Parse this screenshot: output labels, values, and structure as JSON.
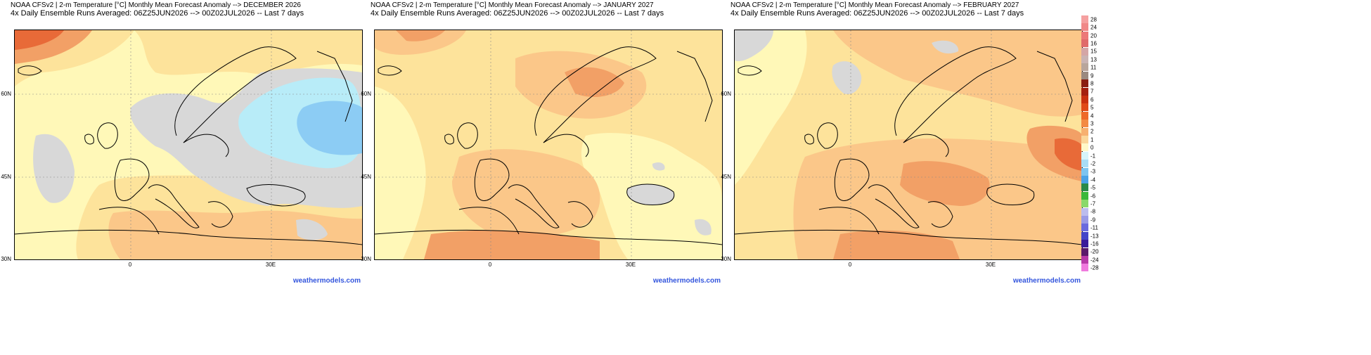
{
  "panels": [
    {
      "title_line1": "NOAA CFSv2 | 2-m Temperature [°C] Monthly Mean Forecast Anomaly --> DECEMBER 2026",
      "title_line2": "4x Daily Ensemble Runs Averaged: 06Z25JUN2026 --> 00Z02JUL2026 -- Last 7 days",
      "credit": "weathermodels.com"
    },
    {
      "title_line1": "NOAA CFSv2 | 2-m Temperature [°C] Monthly Mean Forecast Anomaly --> JANUARY 2027",
      "title_line2": "4x Daily Ensemble Runs Averaged: 06Z25JUN2026 --> 00Z02JUL2026 -- Last 7 days",
      "credit": "weathermodels.com"
    },
    {
      "title_line1": "NOAA CFSv2 | 2-m Temperature [°C] Monthly Mean Forecast Anomaly --> FEBRUARY 2027",
      "title_line2": "4x Daily Ensemble Runs Averaged: 06Z25JUN2026 --> 00Z02JUL2026 -- Last 7 days",
      "credit": "weathermodels.com"
    }
  ],
  "axes": {
    "lat_labels": [
      "60N",
      "45N",
      "30N"
    ],
    "lon_labels": [
      "0",
      "30E"
    ]
  },
  "legend": {
    "levels": [
      "28",
      "24",
      "20",
      "16",
      "15",
      "13",
      "11",
      "9",
      "8",
      "7",
      "6",
      "5",
      "4",
      "3",
      "2",
      "1",
      "0",
      "-1",
      "-2",
      "-3",
      "-4",
      "-5",
      "-6",
      "-7",
      "-8",
      "-9",
      "-11",
      "-13",
      "-16",
      "-20",
      "-24",
      "-28"
    ],
    "colors": [
      "#f5a0a0",
      "#f08888",
      "#ec7878",
      "#e06a6a",
      "#d4a6a6",
      "#c9b3b3",
      "#b8a59c",
      "#9a8a80",
      "#8a1f12",
      "#a4200f",
      "#c8300f",
      "#e04a18",
      "#ee6a2a",
      "#f38a44",
      "#f7b070",
      "#fbd69a",
      "#fff8c8",
      "#d6f4fa",
      "#a8dcf6",
      "#7cc4f0",
      "#4aa2e6",
      "#2a8a4a",
      "#3ab83a",
      "#8ad86a",
      "#bcbcee",
      "#9a9ae6",
      "#6a6ade",
      "#4444c8",
      "#3a1a9a",
      "#5a1a6a",
      "#b83aa8",
      "#f07ade"
    ]
  },
  "colors": {
    "warm_light": "#fff8b8",
    "warm_1": "#fde39b",
    "warm_2": "#fbc789",
    "warm_3": "#f2a066",
    "warm_4": "#e86a38",
    "neutral": "#d8d8d8",
    "cold_1": "#b8ecf8",
    "cold_2": "#8cccf4",
    "credit": "#3355dd"
  }
}
